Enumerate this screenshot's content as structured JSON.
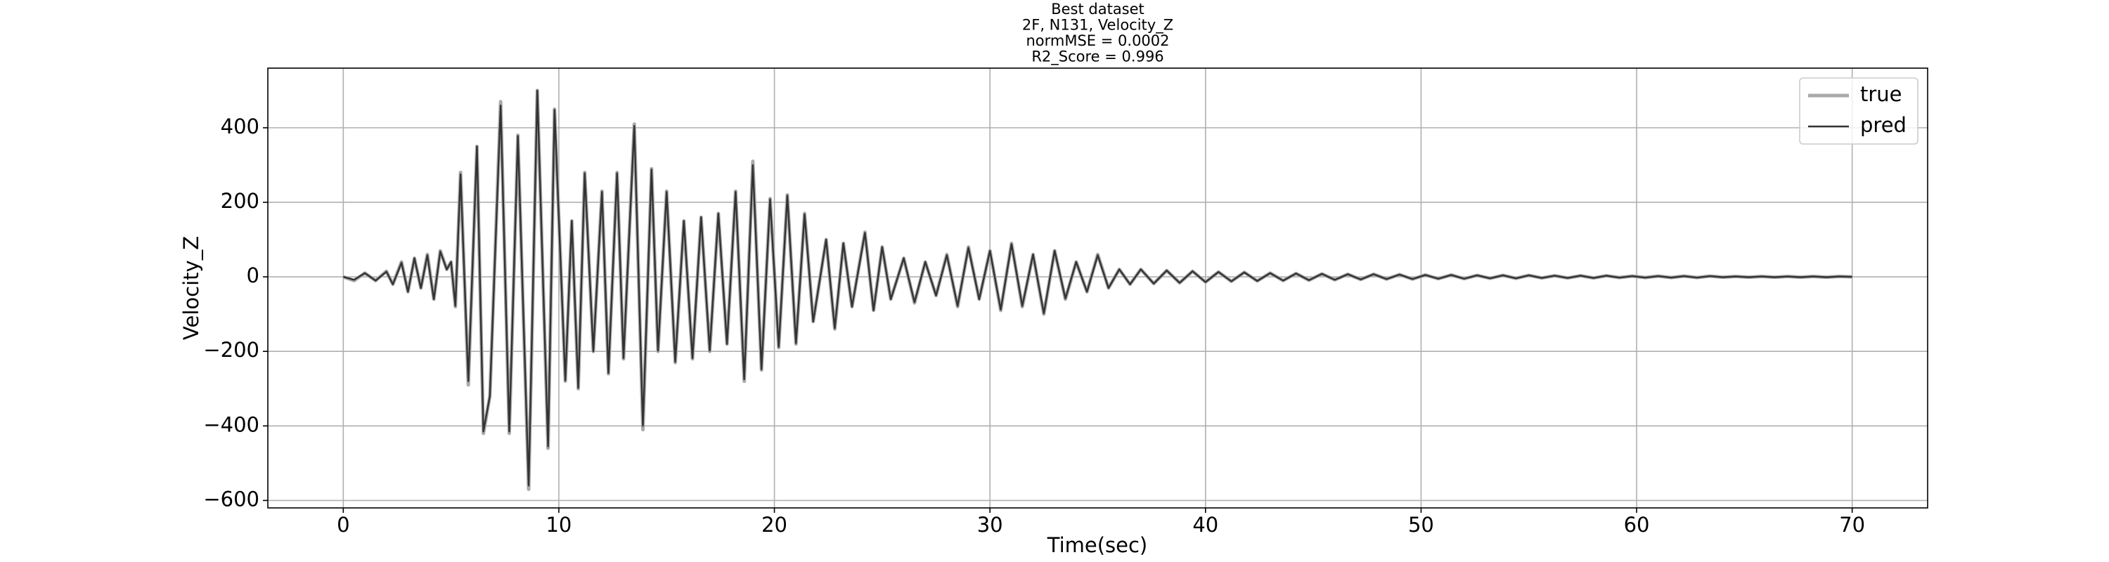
{
  "chart_data": {
    "type": "line",
    "title_lines": [
      "Best dataset",
      "2F, N131, Velocity_Z",
      "normMSE = 0.0002",
      "R2_Score = 0.996"
    ],
    "x_label": "Time(sec)",
    "y_label": "Velocity_Z",
    "x": [
      0,
      0.5,
      1,
      1.5,
      2,
      2.3,
      2.7,
      3,
      3.3,
      3.6,
      3.9,
      4.2,
      4.5,
      4.8,
      5.0,
      5.2,
      5.44,
      5.8,
      6.2,
      6.5,
      6.8,
      7.3,
      7.7,
      8.1,
      8.6,
      9.0,
      9.5,
      9.8,
      10.3,
      10.6,
      10.9,
      11.2,
      11.6,
      12.0,
      12.3,
      12.7,
      13.0,
      13.5,
      13.9,
      14.3,
      14.6,
      15.0,
      15.4,
      15.8,
      16.2,
      16.6,
      17.0,
      17.4,
      17.8,
      18.2,
      18.6,
      19.0,
      19.4,
      19.8,
      20.2,
      20.6,
      21.0,
      21.4,
      21.8,
      22.4,
      22.8,
      23.2,
      23.6,
      24.2,
      24.6,
      25.0,
      25.4,
      26,
      26.5,
      27,
      27.5,
      28,
      28.5,
      29,
      29.5,
      30,
      30.5,
      31,
      31.5,
      32,
      32.5,
      33,
      33.5,
      34,
      34.5,
      35,
      35.5,
      36,
      36.5,
      37,
      37.6,
      38.2,
      38.8,
      39.4,
      40,
      40.6,
      41.2,
      41.8,
      42.4,
      43,
      43.6,
      44.2,
      44.8,
      45.4,
      46,
      46.6,
      47.2,
      47.8,
      48.4,
      49,
      49.6,
      50.2,
      50.8,
      51.4,
      52,
      52.6,
      53.2,
      53.8,
      54.4,
      55,
      55.6,
      56.2,
      56.8,
      57.4,
      58,
      58.6,
      59.2,
      59.8,
      60.4,
      61,
      61.6,
      62.2,
      62.8,
      63.4,
      64,
      64.6,
      65.2,
      65.8,
      66.4,
      67,
      67.6,
      68.2,
      68.8,
      69.4,
      70
    ],
    "series": [
      {
        "name": "true",
        "color": "#aaaaaa",
        "values": [
          0,
          -10,
          10,
          -10,
          15,
          -20,
          40,
          -40,
          50,
          -30,
          60,
          -60,
          70,
          20,
          40,
          -80,
          280,
          -290,
          350,
          -420,
          -320,
          470,
          -420,
          380,
          -570,
          500,
          -460,
          450,
          -280,
          150,
          -300,
          280,
          -200,
          230,
          -260,
          280,
          -220,
          410,
          -410,
          290,
          -200,
          230,
          -230,
          150,
          -220,
          160,
          -200,
          170,
          -180,
          230,
          -280,
          310,
          -250,
          210,
          -190,
          220,
          -180,
          170,
          -120,
          100,
          -140,
          90,
          -80,
          120,
          -90,
          80,
          -60,
          50,
          -70,
          40,
          -50,
          60,
          -80,
          80,
          -60,
          70,
          -90,
          90,
          -80,
          60,
          -100,
          70,
          -60,
          40,
          -40,
          60,
          -30,
          20,
          -20,
          20,
          -18,
          17,
          -16,
          15,
          -14,
          13,
          -12,
          12,
          -11,
          10,
          -10,
          9,
          -9,
          8,
          -8,
          7,
          -7,
          7,
          -6,
          6,
          -6,
          5,
          -5,
          5,
          -5,
          4,
          -4,
          4,
          -4,
          4,
          -3,
          3,
          -3,
          3,
          -3,
          3,
          -2,
          2,
          -2,
          2,
          -2,
          2,
          -2,
          2,
          -1,
          1,
          -1,
          1,
          -1,
          1,
          -1,
          1,
          -1,
          1,
          0
        ]
      },
      {
        "name": "pred",
        "color": "#333333",
        "values": [
          0,
          -8,
          10,
          -10,
          14,
          -20,
          38,
          -40,
          50,
          -30,
          58,
          -60,
          68,
          20,
          40,
          -78,
          275,
          -280,
          350,
          -415,
          -320,
          460,
          -415,
          378,
          -560,
          500,
          -455,
          448,
          -278,
          150,
          -298,
          278,
          -200,
          228,
          -258,
          278,
          -218,
          405,
          -400,
          288,
          -198,
          228,
          -228,
          150,
          -218,
          160,
          -198,
          170,
          -180,
          228,
          -275,
          300,
          -248,
          208,
          -188,
          218,
          -178,
          168,
          -120,
          100,
          -138,
          90,
          -80,
          118,
          -90,
          80,
          -60,
          50,
          -68,
          40,
          -50,
          58,
          -78,
          78,
          -60,
          70,
          -88,
          88,
          -78,
          60,
          -98,
          70,
          -58,
          40,
          -40,
          58,
          -30,
          20,
          -20,
          20,
          -18,
          17,
          -16,
          15,
          -14,
          13,
          -12,
          12,
          -11,
          10,
          -10,
          9,
          -9,
          8,
          -8,
          7,
          -7,
          7,
          -6,
          6,
          -6,
          5,
          -5,
          5,
          -5,
          4,
          -4,
          4,
          -4,
          4,
          -3,
          3,
          -3,
          3,
          -3,
          3,
          -2,
          2,
          -2,
          2,
          -2,
          2,
          -2,
          2,
          -1,
          1,
          -1,
          1,
          -1,
          1,
          -1,
          1,
          -1,
          1,
          0
        ]
      }
    ],
    "xlim": [
      -3.5,
      73.5
    ],
    "xticks": [
      0,
      10,
      20,
      30,
      40,
      50,
      60,
      70
    ],
    "ylim": [
      -620,
      560
    ],
    "yticks": [
      {
        "value": -600,
        "label": "−600"
      },
      {
        "value": -400,
        "label": "−400"
      },
      {
        "value": -200,
        "label": "−200"
      },
      0,
      200,
      400
    ],
    "grid": true,
    "legend": "upper-right"
  }
}
